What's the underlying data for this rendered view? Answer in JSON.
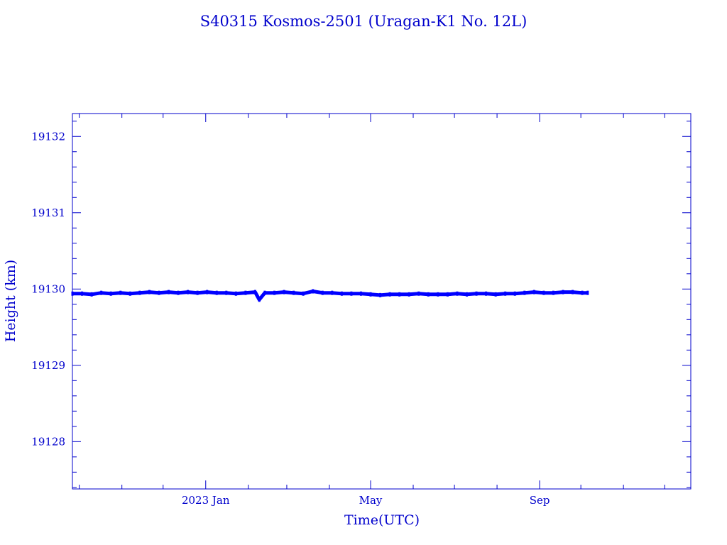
{
  "chart_data": {
    "type": "line",
    "title": "S40315 Kosmos-2501  (Uragan-K1 No. 12L)",
    "xlabel": "Time(UTC)",
    "ylabel": "Height (km)",
    "x_tick_labels": [
      {
        "date": "2023-01-01",
        "label": "2023 Jan"
      },
      {
        "date": "2023-05-01",
        "label": "May"
      },
      {
        "date": "2023-09-01",
        "label": "Sep"
      }
    ],
    "y_ticks": [
      19128,
      19129,
      19130,
      19131,
      19132
    ],
    "xlim": [
      "2022-09-26",
      "2023-12-20"
    ],
    "ylim": [
      19127.38,
      19132.3
    ],
    "grid": false,
    "color": "#0000ff",
    "series": [
      {
        "points": [
          [
            "2022-09-26",
            19129.94
          ],
          [
            "2022-10-03",
            19129.94
          ],
          [
            "2022-10-10",
            19129.93
          ],
          [
            "2022-10-17",
            19129.95
          ],
          [
            "2022-10-24",
            19129.94
          ],
          [
            "2022-10-31",
            19129.95
          ],
          [
            "2022-11-07",
            19129.94
          ],
          [
            "2022-11-14",
            19129.95
          ],
          [
            "2022-11-21",
            19129.96
          ],
          [
            "2022-11-28",
            19129.95
          ],
          [
            "2022-12-05",
            19129.96
          ],
          [
            "2022-12-12",
            19129.95
          ],
          [
            "2022-12-19",
            19129.96
          ],
          [
            "2022-12-26",
            19129.95
          ],
          [
            "2023-01-02",
            19129.96
          ],
          [
            "2023-01-09",
            19129.95
          ],
          [
            "2023-01-16",
            19129.95
          ],
          [
            "2023-01-23",
            19129.94
          ],
          [
            "2023-01-30",
            19129.95
          ],
          [
            "2023-02-06",
            19129.96
          ],
          [
            "2023-02-09",
            19129.86
          ],
          [
            "2023-02-13",
            19129.95
          ],
          [
            "2023-02-20",
            19129.95
          ],
          [
            "2023-02-27",
            19129.96
          ],
          [
            "2023-03-06",
            19129.95
          ],
          [
            "2023-03-13",
            19129.94
          ],
          [
            "2023-03-20",
            19129.97
          ],
          [
            "2023-03-27",
            19129.95
          ],
          [
            "2023-04-03",
            19129.95
          ],
          [
            "2023-04-10",
            19129.94
          ],
          [
            "2023-04-17",
            19129.94
          ],
          [
            "2023-04-24",
            19129.94
          ],
          [
            "2023-05-01",
            19129.93
          ],
          [
            "2023-05-08",
            19129.92
          ],
          [
            "2023-05-15",
            19129.93
          ],
          [
            "2023-05-22",
            19129.93
          ],
          [
            "2023-05-29",
            19129.93
          ],
          [
            "2023-06-05",
            19129.94
          ],
          [
            "2023-06-12",
            19129.93
          ],
          [
            "2023-06-19",
            19129.93
          ],
          [
            "2023-06-26",
            19129.93
          ],
          [
            "2023-07-03",
            19129.94
          ],
          [
            "2023-07-10",
            19129.93
          ],
          [
            "2023-07-17",
            19129.94
          ],
          [
            "2023-07-24",
            19129.94
          ],
          [
            "2023-07-31",
            19129.93
          ],
          [
            "2023-08-07",
            19129.94
          ],
          [
            "2023-08-14",
            19129.94
          ],
          [
            "2023-08-21",
            19129.95
          ],
          [
            "2023-08-28",
            19129.96
          ],
          [
            "2023-09-04",
            19129.95
          ],
          [
            "2023-09-11",
            19129.95
          ],
          [
            "2023-09-18",
            19129.96
          ],
          [
            "2023-09-25",
            19129.96
          ],
          [
            "2023-10-02",
            19129.95
          ],
          [
            "2023-10-06",
            19129.95
          ]
        ]
      }
    ]
  }
}
